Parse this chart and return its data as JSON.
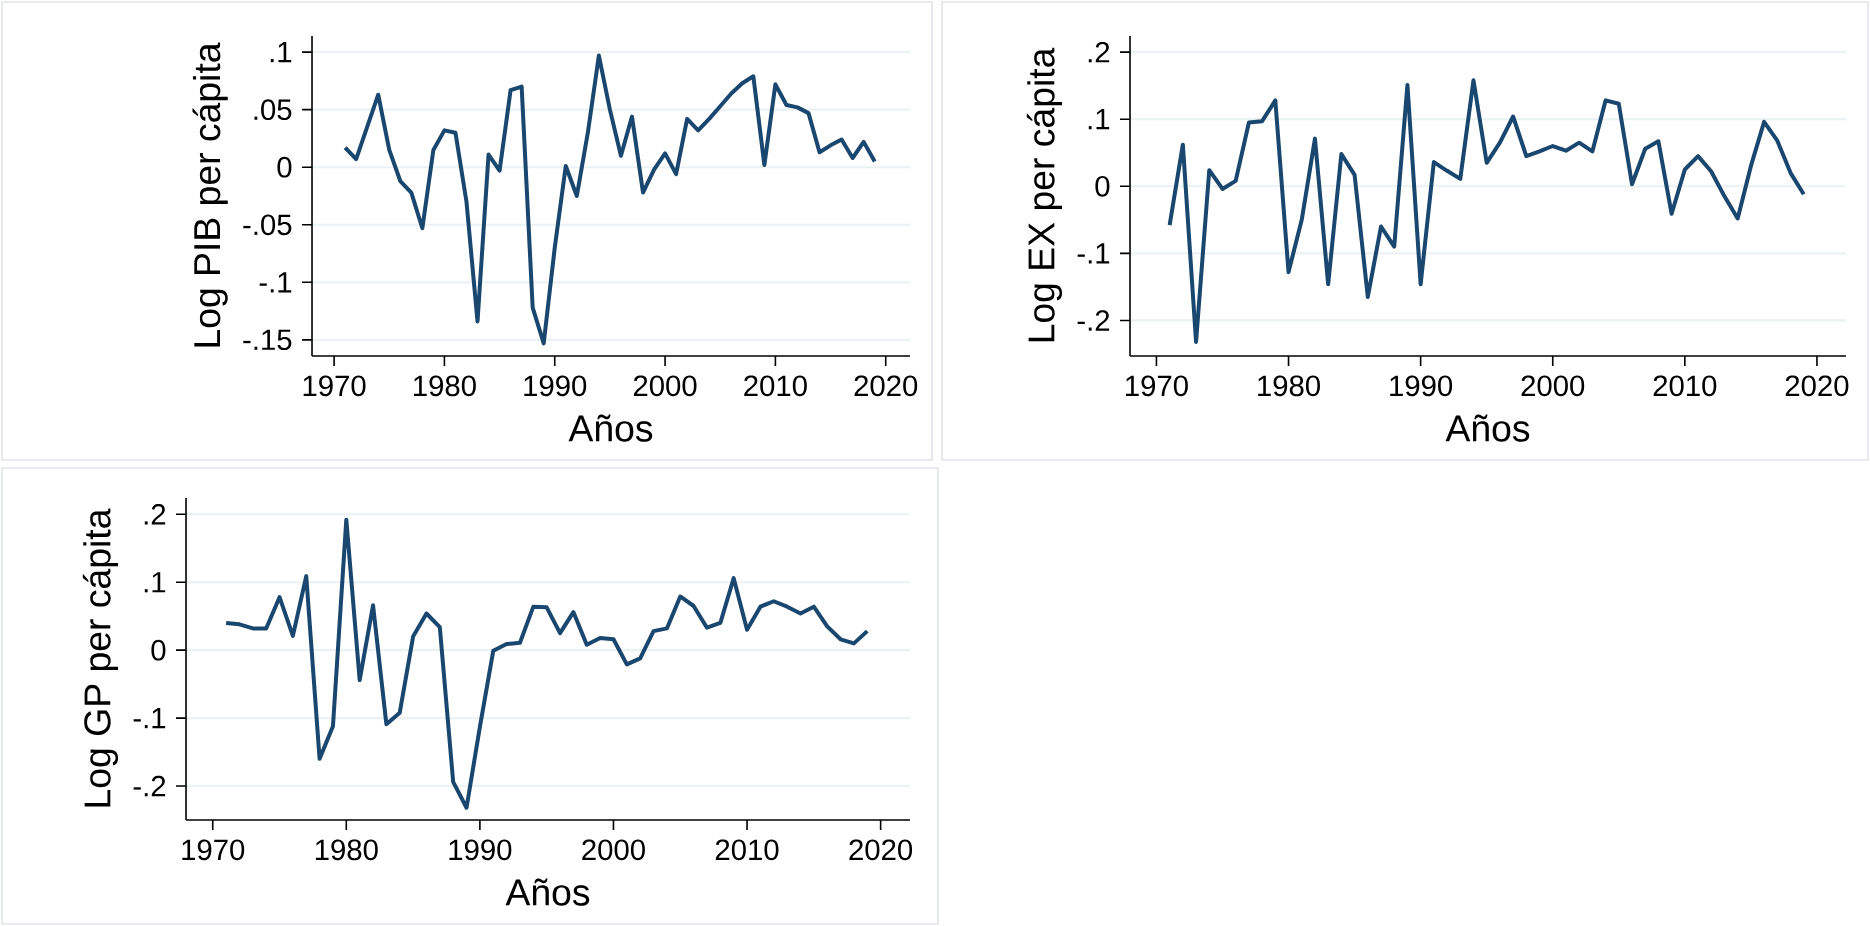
{
  "chart_data": [
    {
      "type": "line",
      "xlabel": "Años",
      "ylabel": "Log PIB per cápita",
      "color": "#1a476f",
      "grid": "y",
      "xlim": [
        1968,
        2022.2
      ],
      "ylim": [
        -0.164,
        0.114
      ],
      "xticks": [
        1970,
        1980,
        1990,
        2000,
        2010,
        2020
      ],
      "yticks": [
        {
          "value": -0.15,
          "label": "-.15"
        },
        {
          "value": -0.1,
          "label": "-.1"
        },
        {
          "value": -0.05,
          "label": "-.05"
        },
        {
          "value": 0,
          "label": "0"
        },
        {
          "value": 0.05,
          "label": ".05"
        },
        {
          "value": 0.1,
          "label": ".1"
        }
      ],
      "x": [
        1971,
        1972,
        1973,
        1974,
        1975,
        1976,
        1977,
        1978,
        1979,
        1980,
        1981,
        1982,
        1983,
        1984,
        1985,
        1986,
        1987,
        1988,
        1989,
        1990,
        1991,
        1992,
        1993,
        1994,
        1995,
        1996,
        1997,
        1998,
        1999,
        2000,
        2001,
        2002,
        2003,
        2004,
        2005,
        2006,
        2007,
        2008,
        2009,
        2010,
        2011,
        2012,
        2013,
        2014,
        2015,
        2016,
        2017,
        2018,
        2019
      ],
      "values": [
        0.017,
        0.007,
        0.035,
        0.063,
        0.015,
        -0.012,
        -0.022,
        -0.053,
        0.015,
        0.032,
        0.03,
        -0.03,
        -0.134,
        0.011,
        -0.003,
        0.067,
        0.07,
        -0.122,
        -0.153,
        -0.07,
        0.001,
        -0.025,
        0.03,
        0.097,
        0.05,
        0.01,
        0.044,
        -0.022,
        -0.002,
        0.012,
        -0.006,
        0.042,
        0.032,
        0.042,
        0.053,
        0.064,
        0.073,
        0.079,
        0.002,
        0.072,
        0.054,
        0.052,
        0.047,
        0.013,
        0.019,
        0.024,
        0.008,
        0.022,
        0.005
      ]
    },
    {
      "type": "line",
      "xlabel": "Años",
      "ylabel": "Log EX per cápita",
      "color": "#1a476f",
      "grid": "y",
      "xlim": [
        1968,
        2022.2
      ],
      "ylim": [
        -0.253,
        0.224
      ],
      "xticks": [
        1970,
        1980,
        1990,
        2000,
        2010,
        2020
      ],
      "yticks": [
        {
          "value": -0.2,
          "label": "-.2"
        },
        {
          "value": -0.1,
          "label": "-.1"
        },
        {
          "value": 0,
          "label": "0"
        },
        {
          "value": 0.1,
          "label": ".1"
        },
        {
          "value": 0.2,
          "label": ".2"
        }
      ],
      "x": [
        1971,
        1972,
        1973,
        1974,
        1975,
        1976,
        1977,
        1978,
        1979,
        1980,
        1981,
        1982,
        1983,
        1984,
        1985,
        1986,
        1987,
        1988,
        1989,
        1990,
        1991,
        1992,
        1993,
        1994,
        1995,
        1996,
        1997,
        1998,
        1999,
        2000,
        2001,
        2002,
        2003,
        2004,
        2005,
        2006,
        2007,
        2008,
        2009,
        2010,
        2011,
        2012,
        2013,
        2014,
        2015,
        2016,
        2017,
        2018,
        2019
      ],
      "values": [
        -0.058,
        0.062,
        -0.232,
        0.024,
        -0.004,
        0.008,
        0.095,
        0.097,
        0.128,
        -0.128,
        -0.05,
        0.071,
        -0.146,
        0.048,
        0.017,
        -0.165,
        -0.06,
        -0.09,
        0.151,
        -0.146,
        0.036,
        0.023,
        0.011,
        0.158,
        0.035,
        0.065,
        0.104,
        0.045,
        0.052,
        0.06,
        0.053,
        0.065,
        0.052,
        0.128,
        0.123,
        0.003,
        0.056,
        0.067,
        -0.041,
        0.025,
        0.045,
        0.022,
        -0.015,
        -0.048,
        0.03,
        0.096,
        0.068,
        0.02,
        -0.012
      ]
    },
    {
      "type": "line",
      "xlabel": "Años",
      "ylabel": "Log GP per cápita",
      "color": "#1a476f",
      "grid": "y",
      "xlim": [
        1968,
        2022.2
      ],
      "ylim": [
        -0.25,
        0.224
      ],
      "xticks": [
        1970,
        1980,
        1990,
        2000,
        2010,
        2020
      ],
      "yticks": [
        {
          "value": -0.2,
          "label": "-.2"
        },
        {
          "value": -0.1,
          "label": "-.1"
        },
        {
          "value": 0,
          "label": "0"
        },
        {
          "value": 0.1,
          "label": ".1"
        },
        {
          "value": 0.2,
          "label": ".2"
        }
      ],
      "x": [
        1971,
        1972,
        1973,
        1974,
        1975,
        1976,
        1977,
        1978,
        1979,
        1980,
        1981,
        1982,
        1983,
        1984,
        1985,
        1986,
        1987,
        1988,
        1989,
        1990,
        1991,
        1992,
        1993,
        1994,
        1995,
        1996,
        1997,
        1998,
        1999,
        2000,
        2001,
        2002,
        2003,
        2004,
        2005,
        2006,
        2007,
        2008,
        2009,
        2010,
        2011,
        2012,
        2013,
        2014,
        2015,
        2016,
        2017,
        2018,
        2019
      ],
      "values": [
        0.04,
        0.038,
        0.032,
        0.032,
        0.078,
        0.021,
        0.109,
        -0.16,
        -0.112,
        0.192,
        -0.044,
        0.066,
        -0.109,
        -0.092,
        0.02,
        0.054,
        0.034,
        -0.194,
        -0.232,
        -0.113,
        -0.001,
        0.009,
        0.011,
        0.064,
        0.063,
        0.025,
        0.056,
        0.008,
        0.018,
        0.016,
        -0.021,
        -0.012,
        0.028,
        0.032,
        0.079,
        0.065,
        0.033,
        0.04,
        0.106,
        0.03,
        0.064,
        0.072,
        0.064,
        0.054,
        0.064,
        0.035,
        0.016,
        0.01,
        0.028
      ]
    }
  ]
}
